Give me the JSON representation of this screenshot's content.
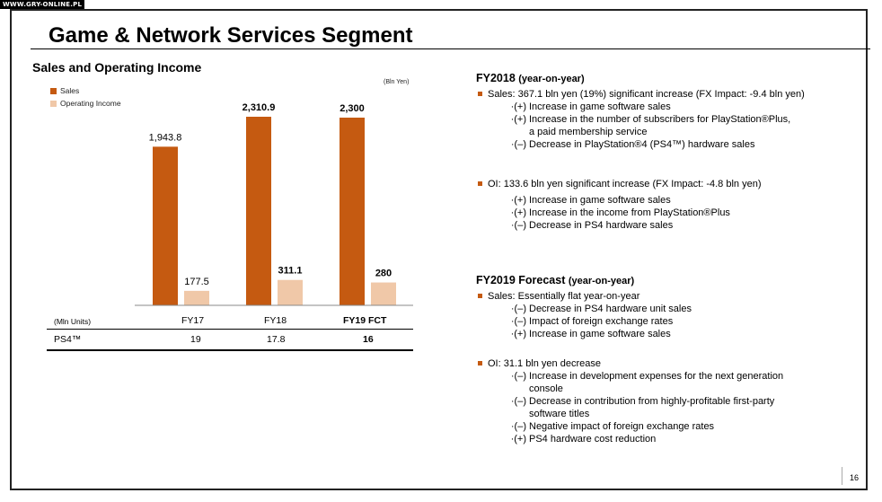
{
  "watermark": "WWW.GRY-ONLINE.PL",
  "title": "Game & Network Services Segment",
  "chart_section": {
    "subtitle": "Sales and Operating Income",
    "unit": "(Bln Yen)"
  },
  "colors": {
    "sales": "#c55a11",
    "operating_income": "#f0c8a8"
  },
  "chart_data": {
    "type": "bar",
    "title": "Sales and Operating Income",
    "unit": "(Bln Yen)",
    "categories": [
      "FY17",
      "FY18",
      "FY19 FCT"
    ],
    "series": [
      {
        "name": "Sales",
        "values": [
          1943.8,
          2310.9,
          2300
        ],
        "labels": [
          "1,943.8",
          "2,310.9",
          "2,300"
        ]
      },
      {
        "name": "Operating Income",
        "values": [
          177.5,
          311.1,
          280
        ],
        "labels": [
          "177.5",
          "311.1",
          "280"
        ]
      }
    ],
    "ylim": [
      0,
      2310.9
    ],
    "grid": false,
    "legend": "top-left"
  },
  "table": {
    "unit_label": "(Mln Units)",
    "columns": [
      "FY17",
      "FY18",
      "FY19 FCT"
    ],
    "row_label": "PS4™",
    "values": [
      "19",
      "17.8",
      "16"
    ]
  },
  "fy2018": {
    "heading": "FY2018",
    "heading_note": "(year-on-year)",
    "sales": {
      "text": "Sales: 367.1 bln yen (19%) significant increase (FX Impact: -9.4 bln yen)",
      "items": [
        {
          "mark": "·(+)",
          "text": "Increase in game software sales"
        },
        {
          "mark": "·(+)",
          "text": "Increase in the number of subscribers for PlayStation®Plus, a paid membership service"
        },
        {
          "mark": "·(–)",
          "text": "Decrease in PlayStation®4 (PS4™) hardware sales"
        }
      ]
    },
    "oi": {
      "text": "OI: 133.6 bln yen significant increase (FX Impact: -4.8 bln yen)",
      "items": [
        {
          "mark": "·(+)",
          "text": "Increase in game software sales"
        },
        {
          "mark": "·(+)",
          "text": "Increase in the income from PlayStation®Plus"
        },
        {
          "mark": "·(–)",
          "text": "Decrease in PS4 hardware sales"
        }
      ]
    }
  },
  "fy2019": {
    "heading": "FY2019 Forecast",
    "heading_note": "(year-on-year)",
    "sales": {
      "text": "Sales: Essentially flat year-on-year",
      "items": [
        {
          "mark": "·(–)",
          "text": "Decrease in PS4 hardware unit sales"
        },
        {
          "mark": "·(–)",
          "text": "Impact of foreign exchange rates"
        },
        {
          "mark": "·(+)",
          "text": "Increase in game software sales"
        }
      ]
    },
    "oi": {
      "text": "OI: 31.1 bln yen decrease",
      "items": [
        {
          "mark": "·(–)",
          "text": "Increase in development expenses for the next generation console"
        },
        {
          "mark": "·(–)",
          "text": "Decrease in contribution from highly-profitable first-party software titles"
        },
        {
          "mark": "·(–)",
          "text": "Negative impact of foreign exchange rates"
        },
        {
          "mark": "·(+)",
          "text": "PS4 hardware cost reduction"
        }
      ]
    }
  },
  "page_number": "16"
}
